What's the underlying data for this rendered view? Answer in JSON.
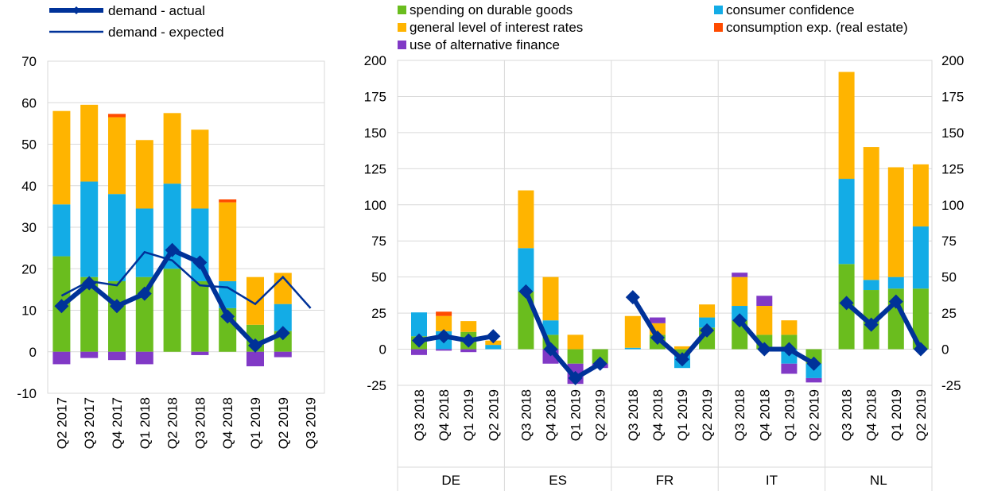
{
  "chart_data": [
    {
      "type": "bar",
      "stacked": true,
      "categories": [
        "Q2 2017",
        "Q3 2017",
        "Q4 2017",
        "Q1 2018",
        "Q2 2018",
        "Q3 2018",
        "Q4 2018",
        "Q1 2019",
        "Q2 2019",
        "Q3 2019"
      ],
      "yticks": [
        "70",
        "60",
        "50",
        "40",
        "30",
        "20",
        "10",
        "0",
        "-10"
      ],
      "ylim": [
        -10,
        70
      ],
      "series": [
        {
          "name": "spending on durable goods",
          "color": "#6ABD1E",
          "values": [
            23,
            18,
            17,
            18,
            20,
            17,
            10.5,
            6.5,
            5,
            0
          ]
        },
        {
          "name": "consumer confidence",
          "color": "#13ACE6",
          "values": [
            12.5,
            23,
            21,
            16.5,
            20.5,
            17.5,
            6.5,
            0,
            6.5,
            0
          ]
        },
        {
          "name": "general level of interest rates",
          "color": "#FFB400",
          "values": [
            22.5,
            18.5,
            18.5,
            16.5,
            17,
            19,
            19,
            11.5,
            7.5,
            0
          ]
        },
        {
          "name": "consumption exp. (real estate)",
          "color": "#FF4B00",
          "values": [
            0,
            0,
            0.8,
            0,
            0,
            0,
            0.7,
            0,
            0,
            0
          ]
        },
        {
          "name": "use of alternative finance",
          "color": "#8139C6",
          "values": [
            -3,
            -1.5,
            -2,
            -3,
            0,
            -0.8,
            0,
            -3.5,
            -1.3,
            0
          ]
        }
      ],
      "lines": [
        {
          "name": "demand - actual",
          "color": "#003299",
          "values": [
            11,
            16.5,
            11,
            14,
            24.5,
            21.5,
            8.5,
            1.5,
            4.5,
            null
          ]
        },
        {
          "name": "demand - expected",
          "color": "#003299",
          "values": [
            13.5,
            17,
            16,
            24,
            22,
            16,
            15.5,
            11.5,
            18,
            10.5
          ]
        }
      ],
      "legend": [
        "demand - actual",
        "demand - expected"
      ]
    },
    {
      "type": "bar",
      "stacked": true,
      "groups": [
        {
          "label": "DE",
          "periods": [
            "Q3 2018",
            "Q4 2018",
            "Q1 2019",
            "Q2 2019"
          ],
          "spending": [
            9,
            0,
            12,
            0
          ],
          "confidence": [
            16.5,
            12.5,
            0,
            3
          ],
          "interest": [
            0,
            10.5,
            7.5,
            3
          ],
          "realestate": [
            0,
            3,
            0,
            0
          ],
          "altfin": [
            -4,
            -1,
            -2,
            0
          ],
          "actual": [
            6,
            9,
            6,
            9
          ]
        },
        {
          "label": "ES",
          "periods": [
            "Q3 2018",
            "Q4 2018",
            "Q1 2019",
            "Q2 2019"
          ],
          "spending": [
            40,
            10,
            -10,
            -10
          ],
          "confidence": [
            30,
            10,
            0,
            0
          ],
          "interest": [
            40,
            30,
            10,
            0
          ],
          "realestate": [
            0,
            0,
            0,
            0
          ],
          "altfin": [
            0,
            -10,
            -14,
            -3
          ],
          "actual": [
            40,
            0,
            -20,
            -10
          ]
        },
        {
          "label": "FR",
          "periods": [
            "Q3 2018",
            "Q4 2018",
            "Q1 2019",
            "Q2 2019"
          ],
          "spending": [
            0,
            10,
            -4,
            15
          ],
          "confidence": [
            1,
            0,
            -9,
            7
          ],
          "interest": [
            22,
            8,
            2,
            9
          ],
          "realestate": [
            0,
            0,
            0,
            0
          ],
          "altfin": [
            0,
            4,
            0,
            0
          ],
          "actual": [
            36,
            8,
            -7,
            13
          ]
        },
        {
          "label": "IT",
          "periods": [
            "Q3 2018",
            "Q4 2018",
            "Q1 2019",
            "Q2 2019"
          ],
          "spending": [
            20,
            10,
            10,
            -10
          ],
          "confidence": [
            10,
            0,
            -10,
            -10
          ],
          "interest": [
            20,
            20,
            10,
            0
          ],
          "realestate": [
            0,
            0,
            0,
            0
          ],
          "altfin": [
            3,
            7,
            -7,
            -3
          ],
          "actual": [
            20,
            0,
            0,
            -10
          ]
        },
        {
          "label": "NL",
          "periods": [
            "Q3 2018",
            "Q4 2018",
            "Q1 2019",
            "Q2 2019"
          ],
          "spending": [
            59,
            41,
            42,
            42
          ],
          "confidence": [
            59,
            7,
            8,
            43
          ],
          "interest": [
            74,
            92,
            76,
            43
          ],
          "realestate": [
            0,
            0,
            0,
            0
          ],
          "altfin": [
            0,
            0,
            0,
            0
          ],
          "actual": [
            32,
            17,
            33,
            0
          ]
        }
      ],
      "yticks": [
        "200",
        "175",
        "150",
        "125",
        "100",
        "75",
        "50",
        "25",
        "0",
        "-25"
      ],
      "ylim": [
        -25,
        200
      ],
      "legend": [
        "spending on durable goods",
        "consumer confidence",
        "general level of interest rates",
        "consumption exp. (real estate)",
        "use of alternative finance"
      ]
    }
  ]
}
